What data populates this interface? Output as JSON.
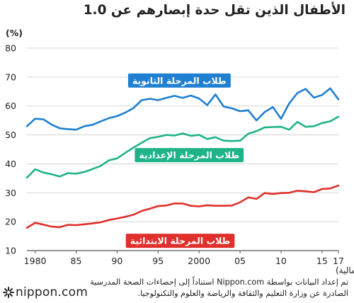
{
  "title": "الأطفال الذين تقل حدة إبصارهم عن 1.0",
  "unit_label": "(%)",
  "x_axis_label": "(السنة المالية)",
  "source_line1": "تم إعداد البيانات بواسطة Nippon.com استناداً إلى إحصاءات الصحة المدرسية",
  "source_line2": "الصادرة عن وزارة التعليم والثقافة والرياضة والعلوم والتكنولوجيا.",
  "logo_text": "nippon.com",
  "chart_data": {
    "type": "line",
    "title": "الأطفال الذين تقل حدة إبصارهم عن 1.0",
    "ylabel": "(%)",
    "xlabel": "(السنة المالية)",
    "ylim": [
      10,
      80
    ],
    "xlim": [
      1979,
      2017
    ],
    "y_ticks": [
      10,
      20,
      30,
      40,
      50,
      60,
      70,
      80
    ],
    "x_ticks": [
      {
        "year": 1980,
        "label": "1980"
      },
      {
        "year": 1985,
        "label": "85"
      },
      {
        "year": 1990,
        "label": "90"
      },
      {
        "year": 1995,
        "label": "95"
      },
      {
        "year": 2000,
        "label": "2000"
      },
      {
        "year": 2005,
        "label": "05"
      },
      {
        "year": 2010,
        "label": "10"
      },
      {
        "year": 2015,
        "label": "15"
      },
      {
        "year": 2017,
        "label": "17"
      }
    ],
    "grid": "horizontal",
    "x": [
      1979,
      1980,
      1981,
      1982,
      1983,
      1984,
      1985,
      1986,
      1987,
      1988,
      1989,
      1990,
      1991,
      1992,
      1993,
      1994,
      1995,
      1996,
      1997,
      1998,
      1999,
      2000,
      2001,
      2002,
      2003,
      2004,
      2005,
      2006,
      2007,
      2008,
      2009,
      2010,
      2011,
      2012,
      2013,
      2014,
      2015,
      2016,
      2017
    ],
    "series": [
      {
        "name": "طلاب المرحلة الثانوية",
        "color": "#1f7fd1",
        "values": [
          53.0,
          55.6,
          55.4,
          53.6,
          52.3,
          52.0,
          51.8,
          53.0,
          53.5,
          54.7,
          55.8,
          56.5,
          57.7,
          59.3,
          62.0,
          62.5,
          62.0,
          62.8,
          63.5,
          62.8,
          63.6,
          62.6,
          60.3,
          64.0,
          59.8,
          59.2,
          58.2,
          58.5,
          55.0,
          57.9,
          59.6,
          55.6,
          60.9,
          64.5,
          65.9,
          62.9,
          63.8,
          66.1,
          62.3
        ]
      },
      {
        "name": "طلاب المرحلة الإعدادية",
        "color": "#1fb38a",
        "values": [
          35.2,
          38.1,
          37.0,
          36.4,
          35.6,
          36.8,
          36.6,
          37.2,
          38.2,
          39.3,
          41.2,
          41.9,
          43.8,
          45.6,
          47.3,
          48.9,
          49.3,
          50.0,
          49.8,
          50.5,
          49.7,
          50.0,
          48.6,
          49.2,
          48.0,
          47.9,
          48.0,
          50.4,
          51.3,
          52.6,
          52.7,
          52.8,
          51.8,
          54.5,
          52.8,
          53.0,
          54.1,
          54.7,
          56.3
        ]
      },
      {
        "name": "طلاب المرحلة الابتدائية",
        "color": "#e0302b",
        "values": [
          17.9,
          19.6,
          19.0,
          18.3,
          18.1,
          18.9,
          18.8,
          19.1,
          19.4,
          19.8,
          20.6,
          21.1,
          21.7,
          22.4,
          23.7,
          24.5,
          25.4,
          25.6,
          26.3,
          26.3,
          25.5,
          25.3,
          25.7,
          25.5,
          25.5,
          25.6,
          26.7,
          28.4,
          27.9,
          29.9,
          29.6,
          29.9,
          30.0,
          30.7,
          30.5,
          30.2,
          31.3,
          31.5,
          32.5
        ]
      }
    ],
    "line_labels": [
      {
        "series": "طلاب المرحلة الثانوية",
        "anchor_year": 1997.6,
        "anchor_value": 68.8
      },
      {
        "series": "طلاب المرحلة الإعدادية",
        "anchor_year": 1998.8,
        "anchor_value": 43.0
      },
      {
        "series": "طلاب المرحلة الابتدائية",
        "anchor_year": 1997.7,
        "anchor_value": 13.4
      }
    ]
  }
}
